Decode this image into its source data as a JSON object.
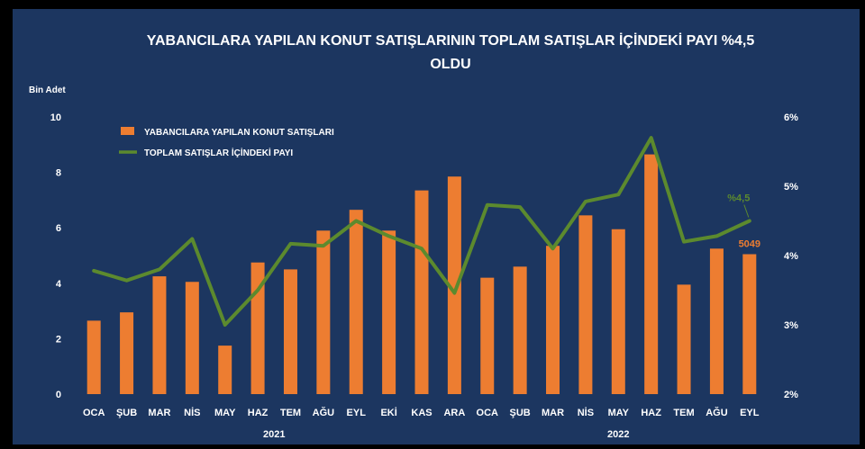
{
  "chart_data": {
    "type": "bar+line",
    "title_line1": "YABANCILARA YAPILAN KONUT SATIŞLARININ TOPLAM SATIŞLAR İÇİNDEKİ PAYI %4,5",
    "title_line2": "OLDU",
    "ylabel_left": "Bin Adet",
    "ylim_left": [
      0,
      10
    ],
    "yticks_left": [
      "0",
      "2",
      "4",
      "6",
      "8",
      "10"
    ],
    "ylim_right": [
      2,
      6
    ],
    "yticks_right": [
      "2%",
      "3%",
      "4%",
      "5%",
      "6%"
    ],
    "categories": [
      "OCA",
      "ŞUB",
      "MAR",
      "NİS",
      "MAY",
      "HAZ",
      "TEM",
      "AĞU",
      "EYL",
      "EKİ",
      "KAS",
      "ARA",
      "OCA",
      "ŞUB",
      "MAR",
      "NİS",
      "MAY",
      "HAZ",
      "TEM",
      "AĞU",
      "EYL"
    ],
    "year_groups": [
      {
        "label": "2021",
        "from": 0,
        "to": 11
      },
      {
        "label": "2022",
        "from": 12,
        "to": 20
      }
    ],
    "series": [
      {
        "name": "YABANCILARA YAPILAN KONUT SATIŞLARI",
        "kind": "bar",
        "axis": "left",
        "color": "#ed7d31",
        "values": [
          2.65,
          2.95,
          4.25,
          4.05,
          1.75,
          4.75,
          4.5,
          5.9,
          6.65,
          5.9,
          7.35,
          7.85,
          4.2,
          4.6,
          5.35,
          6.45,
          5.95,
          8.65,
          3.95,
          5.25,
          5.049
        ]
      },
      {
        "name": "TOPLAM SATIŞLAR İÇİNDEKİ PAYI",
        "kind": "line",
        "axis": "right",
        "color": "#5c8a2e",
        "values": [
          3.78,
          3.64,
          3.8,
          4.24,
          3.0,
          3.5,
          4.17,
          4.14,
          4.5,
          4.28,
          4.1,
          3.46,
          4.73,
          4.7,
          4.1,
          4.78,
          4.88,
          5.7,
          4.2,
          4.28,
          4.5
        ]
      }
    ],
    "annotations": [
      {
        "series": 0,
        "index": 20,
        "text": "5049",
        "color": "#ed7d31"
      },
      {
        "series": 1,
        "index": 20,
        "text": "%4,5",
        "color": "#5c8a2e"
      }
    ],
    "legend": "top-left",
    "grid": false
  }
}
